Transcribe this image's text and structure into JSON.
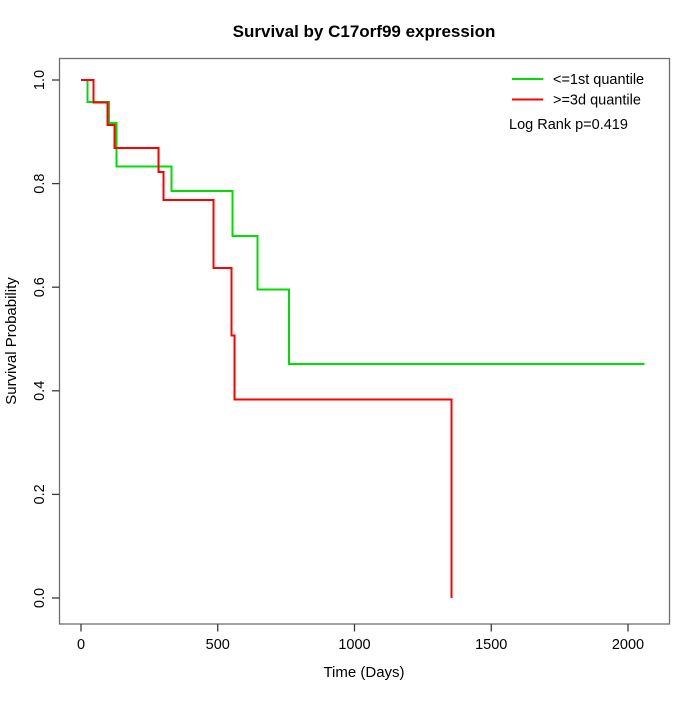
{
  "title": "Survival by C17orf99 expression",
  "axes": {
    "x": {
      "label": "Time (Days)",
      "tick_labels": [
        "0",
        "500",
        "1000",
        "1500",
        "2000"
      ],
      "tick_values": [
        0,
        500,
        1000,
        1500,
        2000
      ]
    },
    "y": {
      "label": "Survival Probability",
      "tick_labels": [
        "1.0",
        "0.8",
        "0.6",
        "0.4",
        "0.2",
        "0.0"
      ],
      "tick_values": [
        1.0,
        0.8,
        0.6,
        0.4,
        0.2,
        0.0
      ]
    }
  },
  "legend": {
    "items": [
      {
        "label": "<=1st quantile",
        "color": "#00DD00"
      },
      {
        "label": ">=3d quantile",
        "color": "#FF0000"
      }
    ],
    "annotation": "Log Rank p=0.419"
  },
  "chart_data": {
    "type": "line",
    "subtype": "kaplan-meier-step",
    "title": "Survival by C17orf99 expression",
    "xlabel": "Time (Days)",
    "ylabel": "Survival Probability",
    "xlim": [
      0,
      2150
    ],
    "ylim": [
      0,
      1
    ],
    "grid": false,
    "legend_position": "top-right-inside",
    "annotation": "Log Rank p=0.419",
    "series": [
      {
        "name": "<=1st quantile",
        "color": "#00DD00",
        "end_time": 2060,
        "points": [
          [
            0,
            1.0
          ],
          [
            24,
            0.958
          ],
          [
            103,
            0.917
          ],
          [
            130,
            0.833
          ],
          [
            330,
            0.786
          ],
          [
            554,
            0.699
          ],
          [
            645,
            0.596
          ],
          [
            760,
            0.452
          ]
        ]
      },
      {
        "name": ">=3d quantile",
        "color": "#FF0000",
        "end_time": 1355,
        "points": [
          [
            0,
            1.0
          ],
          [
            45,
            0.957
          ],
          [
            96,
            0.913
          ],
          [
            122,
            0.869
          ],
          [
            283,
            0.822
          ],
          [
            302,
            0.768
          ],
          [
            484,
            0.637
          ],
          [
            550,
            0.507
          ],
          [
            562,
            0.383
          ],
          [
            1355,
            0.0
          ]
        ]
      }
    ]
  }
}
